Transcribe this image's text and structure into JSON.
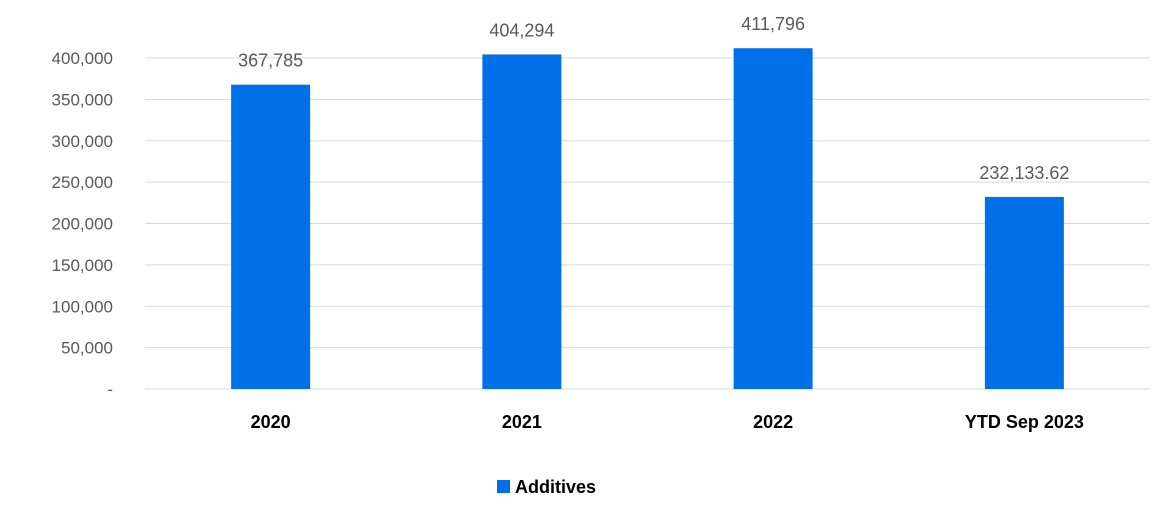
{
  "chart_data": {
    "type": "bar",
    "categories": [
      "2020",
      "2021",
      "2022",
      "YTD Sep 2023"
    ],
    "series": [
      {
        "name": "Additives",
        "values": [
          367785,
          404294,
          411796,
          232133.62
        ],
        "value_labels": [
          "367,785",
          "404,294",
          "411,796",
          "232,133.62"
        ],
        "color": "#0070e8"
      }
    ],
    "ylim": [
      0,
      400000
    ],
    "yticks": [
      0,
      50000,
      100000,
      150000,
      200000,
      250000,
      300000,
      350000,
      400000
    ],
    "ytick_labels": [
      "-",
      "50,000",
      "100,000",
      "150,000",
      "200,000",
      "250,000",
      "300,000",
      "350,000",
      "400,000"
    ],
    "grid": true,
    "legend_position": "bottom"
  }
}
